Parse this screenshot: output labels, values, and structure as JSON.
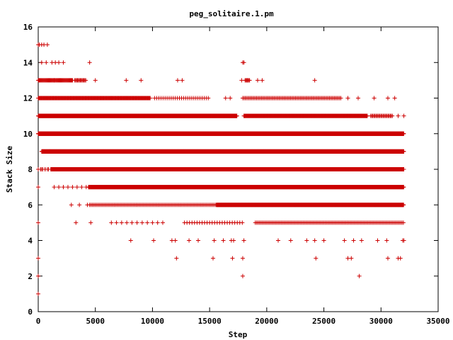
{
  "chart_data": {
    "type": "scatter",
    "title": "peg_solitaire.1.pm",
    "xlabel": "Step",
    "ylabel": "Stack Size",
    "xlim": [
      0,
      35000
    ],
    "ylim": [
      0,
      16
    ],
    "xticks": [
      "0",
      "5000",
      "10000",
      "15000",
      "20000",
      "25000",
      "30000",
      "35000"
    ],
    "yticks": [
      "0",
      "2",
      "4",
      "6",
      "8",
      "10",
      "12",
      "14",
      "16"
    ],
    "grid": false,
    "legend": "none",
    "marker": "+",
    "color": "#cc0000",
    "series": [
      {
        "points": [
          [
            0,
            1
          ],
          [
            0,
            2
          ],
          [
            0,
            3
          ],
          [
            0,
            5
          ],
          [
            0,
            7
          ],
          [
            0,
            15
          ],
          [
            100,
            15
          ],
          [
            300,
            15
          ],
          [
            500,
            15
          ],
          [
            800,
            15
          ],
          [
            300,
            14
          ],
          [
            700,
            14
          ],
          [
            1200,
            14
          ],
          [
            1500,
            14
          ],
          [
            1800,
            14
          ],
          [
            2200,
            14
          ],
          [
            4500,
            14
          ],
          [
            17900,
            14
          ],
          [
            18000,
            14
          ],
          [
            4600,
            5
          ],
          [
            8100,
            4
          ],
          [
            10100,
            4
          ],
          [
            11700,
            4
          ],
          [
            12100,
            3
          ],
          [
            12000,
            4
          ],
          [
            14000,
            4
          ],
          [
            15300,
            3
          ],
          [
            15400,
            4
          ],
          [
            17000,
            3
          ],
          [
            17100,
            4
          ],
          [
            17900,
            3
          ],
          [
            17900,
            2
          ],
          [
            18000,
            4
          ],
          [
            24300,
            3
          ],
          [
            24200,
            4
          ],
          [
            27100,
            3
          ],
          [
            27400,
            3
          ],
          [
            28100,
            2
          ],
          [
            30600,
            3
          ],
          [
            31500,
            3
          ],
          [
            31700,
            3
          ],
          [
            13200,
            4
          ],
          [
            16200,
            4
          ],
          [
            16900,
            4
          ],
          [
            21000,
            4
          ],
          [
            22100,
            4
          ],
          [
            23500,
            4
          ],
          [
            25000,
            4
          ],
          [
            26800,
            4
          ],
          [
            27600,
            4
          ],
          [
            28300,
            4
          ],
          [
            29700,
            4
          ],
          [
            30500,
            4
          ],
          [
            31900,
            4
          ],
          [
            32000,
            4
          ],
          [
            3600,
            6
          ],
          [
            4300,
            6
          ],
          [
            2900,
            6
          ],
          [
            3300,
            5
          ],
          [
            1400,
            7
          ],
          [
            1800,
            7
          ],
          [
            2200,
            7
          ],
          [
            2600,
            7
          ],
          [
            3000,
            7
          ],
          [
            3400,
            7
          ],
          [
            3800,
            7
          ],
          [
            4200,
            7
          ],
          [
            1400,
            13
          ],
          [
            5000,
            13
          ],
          [
            7700,
            13
          ],
          [
            9000,
            13
          ],
          [
            12200,
            13
          ],
          [
            12600,
            13
          ],
          [
            17800,
            13
          ],
          [
            18300,
            13
          ],
          [
            19200,
            13
          ],
          [
            19600,
            13
          ],
          [
            24200,
            13
          ],
          [
            5500,
            12
          ],
          [
            6400,
            12
          ],
          [
            7000,
            12
          ],
          [
            16400,
            12
          ],
          [
            16800,
            12
          ],
          [
            27100,
            12
          ],
          [
            28000,
            12
          ],
          [
            29400,
            12
          ],
          [
            30600,
            12
          ],
          [
            31200,
            12
          ],
          [
            31500,
            11
          ],
          [
            32000,
            11
          ],
          [
            1000,
            9
          ],
          [
            500,
            9
          ],
          [
            300,
            8
          ],
          [
            600,
            8
          ],
          [
            900,
            8
          ]
        ],
        "ranges": [
          {
            "y": 13,
            "from": 0,
            "to": 3000,
            "step": 60
          },
          {
            "y": 13,
            "from": 3200,
            "to": 4200,
            "step": 80
          },
          {
            "y": 13,
            "from": 18100,
            "to": 18500,
            "step": 80
          },
          {
            "y": 12,
            "from": 0,
            "to": 9800,
            "step": 50
          },
          {
            "y": 12,
            "from": 10200,
            "to": 15000,
            "step": 180
          },
          {
            "y": 12,
            "from": 17900,
            "to": 26500,
            "step": 110
          },
          {
            "y": 11,
            "from": 0,
            "to": 17400,
            "step": 18
          },
          {
            "y": 11,
            "from": 18000,
            "to": 28800,
            "step": 40
          },
          {
            "y": 11,
            "from": 29100,
            "to": 31000,
            "step": 90
          },
          {
            "y": 10,
            "from": 0,
            "to": 32000,
            "step": 14
          },
          {
            "y": 9,
            "from": 300,
            "to": 32000,
            "step": 14
          },
          {
            "y": 8,
            "from": 0,
            "to": 900,
            "step": 200
          },
          {
            "y": 8,
            "from": 1100,
            "to": 32000,
            "step": 14
          },
          {
            "y": 7,
            "from": 4400,
            "to": 32000,
            "step": 22
          },
          {
            "y": 6,
            "from": 4500,
            "to": 15600,
            "step": 120
          },
          {
            "y": 6,
            "from": 15600,
            "to": 32000,
            "step": 28
          },
          {
            "y": 5,
            "from": 6400,
            "to": 11000,
            "step": 450
          },
          {
            "y": 5,
            "from": 12800,
            "to": 18000,
            "step": 220
          },
          {
            "y": 5,
            "from": 19000,
            "to": 32000,
            "step": 120
          }
        ]
      }
    ]
  }
}
